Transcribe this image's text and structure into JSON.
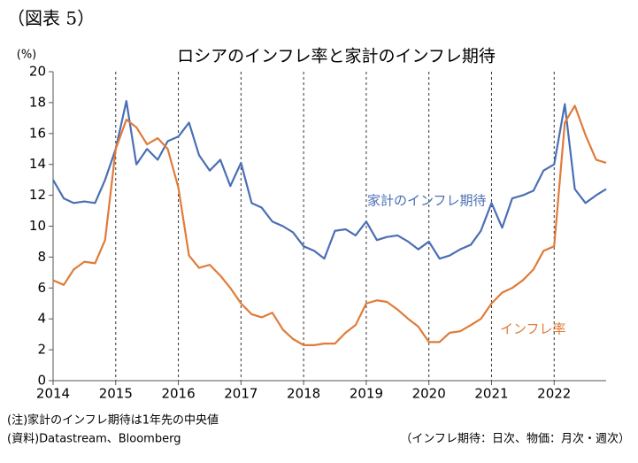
{
  "header": "（図表 5）",
  "chart_data": {
    "type": "line",
    "title": "ロシアのインフレ率と家計のインフレ期待",
    "y_label": "(%)",
    "x": [
      2014.0,
      2014.17,
      2014.33,
      2014.5,
      2014.67,
      2014.83,
      2015.0,
      2015.17,
      2015.33,
      2015.5,
      2015.67,
      2015.83,
      2016.0,
      2016.17,
      2016.33,
      2016.5,
      2016.67,
      2016.83,
      2017.0,
      2017.17,
      2017.33,
      2017.5,
      2017.67,
      2017.83,
      2018.0,
      2018.17,
      2018.33,
      2018.5,
      2018.67,
      2018.83,
      2019.0,
      2019.17,
      2019.33,
      2019.5,
      2019.67,
      2019.83,
      2020.0,
      2020.17,
      2020.33,
      2020.5,
      2020.67,
      2020.83,
      2021.0,
      2021.17,
      2021.33,
      2021.5,
      2021.67,
      2021.83,
      2022.0,
      2022.17,
      2022.33,
      2022.5,
      2022.67,
      2022.83
    ],
    "series": [
      {
        "name": "家計のインフレ期待",
        "color": "#4a6fb5",
        "values": [
          13.0,
          11.8,
          11.5,
          11.6,
          11.5,
          13.0,
          15.0,
          18.1,
          14.0,
          15.0,
          14.3,
          15.5,
          15.8,
          16.7,
          14.6,
          13.6,
          14.3,
          12.6,
          14.1,
          11.5,
          11.2,
          10.3,
          10.0,
          9.6,
          8.7,
          8.4,
          7.9,
          9.7,
          9.8,
          9.4,
          10.3,
          9.1,
          9.3,
          9.4,
          9.0,
          8.5,
          9.0,
          7.9,
          8.1,
          8.5,
          8.8,
          9.7,
          11.5,
          9.9,
          11.8,
          12.0,
          12.3,
          13.6,
          14.0,
          17.9,
          12.4,
          11.5,
          12.0,
          12.4
        ]
      },
      {
        "name": "インフレ率",
        "color": "#e07b39",
        "values": [
          6.5,
          6.2,
          7.2,
          7.7,
          7.6,
          9.1,
          15.0,
          16.9,
          16.4,
          15.3,
          15.7,
          15.0,
          12.5,
          8.1,
          7.3,
          7.5,
          6.8,
          6.0,
          5.0,
          4.3,
          4.1,
          4.4,
          3.3,
          2.7,
          2.3,
          2.3,
          2.4,
          2.4,
          3.1,
          3.6,
          5.0,
          5.2,
          5.1,
          4.6,
          4.0,
          3.5,
          2.5,
          2.5,
          3.1,
          3.2,
          3.6,
          4.0,
          5.0,
          5.7,
          6.0,
          6.5,
          7.2,
          8.4,
          8.7,
          16.7,
          17.8,
          15.9,
          14.3,
          14.1
        ]
      }
    ],
    "xlim": [
      2014,
      2022.83
    ],
    "xticks": [
      2014,
      2015,
      2016,
      2017,
      2018,
      2019,
      2020,
      2021,
      2022
    ],
    "ylim": [
      0,
      20
    ],
    "yticks": [
      0,
      2,
      4,
      6,
      8,
      10,
      12,
      14,
      16,
      18,
      20
    ],
    "grid": "x"
  },
  "notes": [
    "(注)家計のインフレ期待は1年先の中央値",
    "(資料)Datastream、Bloomberg",
    "（インフレ期待：日次、物価：月次・週次）"
  ]
}
